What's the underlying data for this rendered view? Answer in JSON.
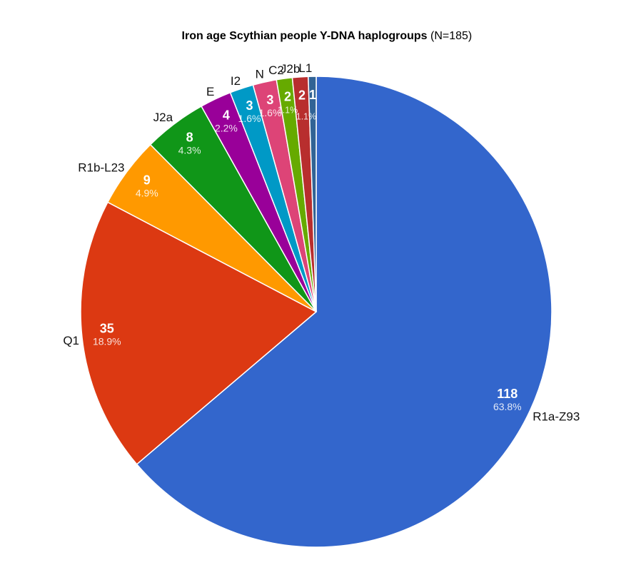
{
  "title": {
    "bold": "Iron age Scythian people Y-DNA haplogroups",
    "normal": " (N=185)"
  },
  "chart_data": {
    "type": "pie",
    "title": "Iron age Scythian people Y-DNA haplogroups (N=185)",
    "total": 185,
    "start_angle_deg": 0,
    "direction": "clockwise",
    "legend_position": "labeled-outside",
    "inside_labels": "value and percent",
    "slices": [
      {
        "label": "R1a-Z93",
        "value": 118,
        "percent_label": "63.8%",
        "color": "#3366CC"
      },
      {
        "label": "Q1",
        "value": 35,
        "percent_label": "18.9%",
        "color": "#DC3912"
      },
      {
        "label": "R1b-L23",
        "value": 9,
        "percent_label": "4.9%",
        "color": "#FF9900"
      },
      {
        "label": "J2a",
        "value": 8,
        "percent_label": "4.3%",
        "color": "#109618"
      },
      {
        "label": "E",
        "value": 4,
        "percent_label": "2.2%",
        "color": "#990099"
      },
      {
        "label": "I2",
        "value": 3,
        "percent_label": "1.6%",
        "color": "#0099C6"
      },
      {
        "label": "N",
        "value": 3,
        "percent_label": "1.6%",
        "color": "#DD4477"
      },
      {
        "label": "C2",
        "value": 2,
        "percent_label": "1.1%",
        "color": "#66AA00"
      },
      {
        "label": "J2b",
        "value": 2,
        "percent_label": "1.1%",
        "color": "#B82E2E"
      },
      {
        "label": "L1",
        "value": 1,
        "percent_label": "",
        "color": "#316395"
      }
    ],
    "label_text_color": "#111111",
    "value_text_color": "#ffffff",
    "background_color": "#ffffff"
  }
}
